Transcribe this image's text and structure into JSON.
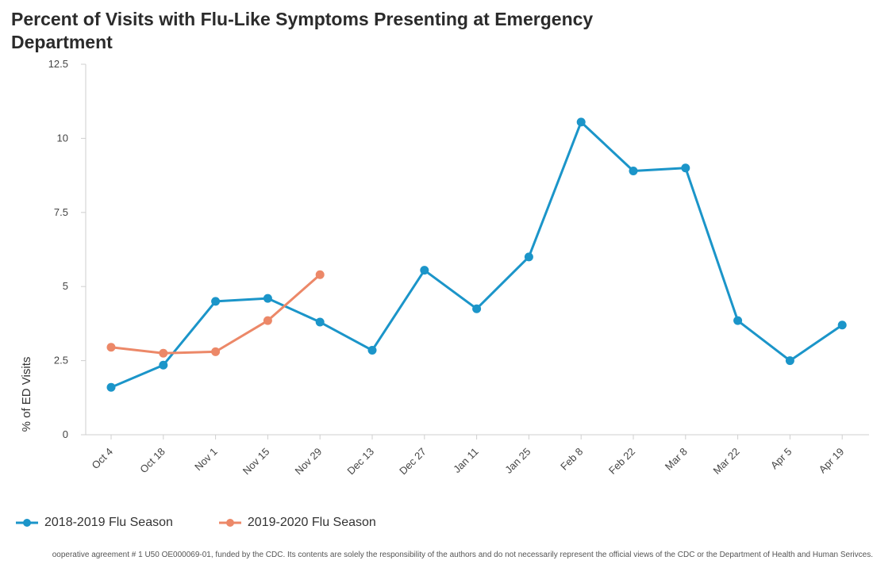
{
  "title": "Percent of Visits with Flu-Like Symptoms Presenting at Emergency Department",
  "footnote": "ooperative agreement # 1 U50 OE000069-01, funded by the CDC. Its contents are solely the responsibility of the authors and do not necessarily represent the official views of the CDC or the Department of Health and Human Serivces.",
  "chart_data": {
    "type": "line",
    "title": "Percent of Visits with Flu-Like Symptoms Presenting at Emergency Department",
    "xlabel": "",
    "ylabel": "% of ED Visits",
    "ylim": [
      0,
      12.5
    ],
    "yticks": [
      0,
      2.5,
      5,
      7.5,
      10,
      12.5
    ],
    "ytick_labels": [
      "0",
      "2.5",
      "5",
      "7.5",
      "10",
      "12.5"
    ],
    "categories": [
      "Oct 4",
      "Oct 18",
      "Nov 1",
      "Nov 15",
      "Nov 29",
      "Dec 13",
      "Dec 27",
      "Jan 11",
      "Jan 25",
      "Feb 8",
      "Feb 22",
      "Mar 8",
      "Mar 22",
      "Apr 5",
      "Apr 19"
    ],
    "grid": false,
    "legend_position": "bottom-left",
    "series": [
      {
        "name": "2018-2019 Flu Season",
        "color": "#1b95c9",
        "values": [
          1.6,
          2.35,
          4.5,
          4.6,
          3.8,
          2.85,
          5.55,
          4.25,
          6.0,
          10.55,
          8.9,
          9.0,
          3.85,
          2.5,
          3.7
        ]
      },
      {
        "name": "2019-2020 Flu Season",
        "color": "#ec8868",
        "values": [
          2.95,
          2.75,
          2.8,
          3.85,
          5.4,
          null,
          null,
          null,
          null,
          null,
          null,
          null,
          null,
          null,
          null
        ]
      }
    ]
  }
}
